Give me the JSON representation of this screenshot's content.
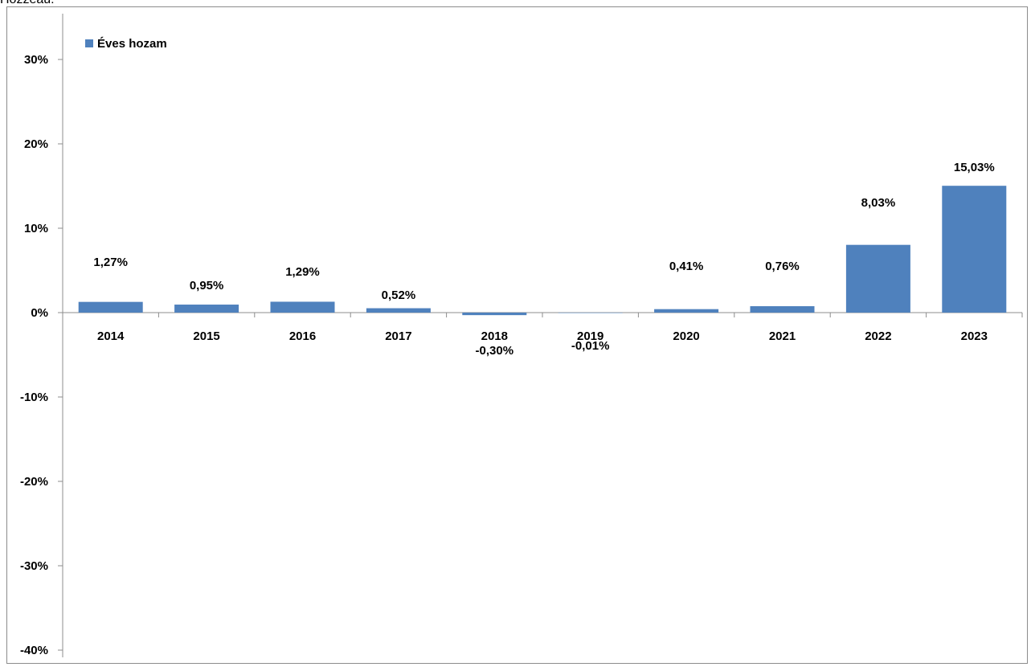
{
  "caption_fragment": "Hozzeau:",
  "chart_data": {
    "type": "bar",
    "categories": [
      "2014",
      "2015",
      "2016",
      "2017",
      "2018",
      "2019",
      "2020",
      "2021",
      "2022",
      "2023"
    ],
    "series": [
      {
        "name": "Éves hozam",
        "values": [
          1.27,
          0.95,
          1.29,
          0.52,
          -0.3,
          -0.01,
          0.41,
          0.76,
          8.03,
          15.03
        ],
        "labels": [
          "1,27%",
          "0,95%",
          "1,29%",
          "0,52%",
          "-0,30%",
          "-0,01%",
          "0,41%",
          "0,76%",
          "8,03%",
          "15,03%"
        ]
      }
    ],
    "ylim": [
      -40,
      35
    ],
    "yticks": [
      30,
      20,
      10,
      0,
      -10,
      -20,
      -30,
      -40
    ],
    "ytick_labels": [
      "30%",
      "20%",
      "10%",
      "0%",
      "-10%",
      "-20%",
      "-30%",
      "-40%"
    ],
    "grid": false,
    "legend_position": "top-left",
    "colors": {
      "bar": "#4f81bd",
      "axis": "#8c8c8c"
    }
  }
}
